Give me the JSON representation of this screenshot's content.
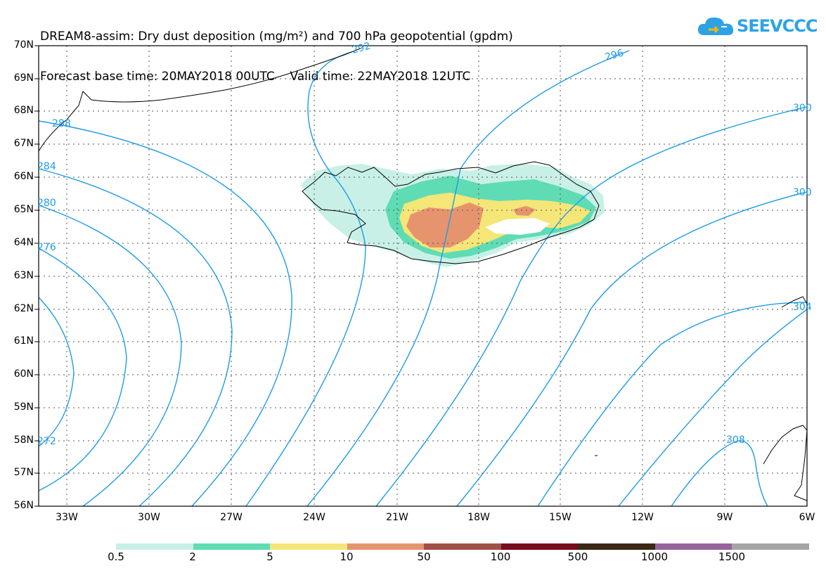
{
  "title": {
    "line1": "DREAM8-assim: Dry dust deposition (mg/m²) and 700 hPa geopotential (gpdm)",
    "line2": "Forecast base time: 20MAY2018 00UTC    Valid time: 22MAY2018 12UTC"
  },
  "logo": {
    "text": "SEEVCCC",
    "icon": "cloud-icon",
    "color": "#2da3e6"
  },
  "lat_labels": [
    "70N",
    "69N",
    "68N",
    "67N",
    "66N",
    "65N",
    "64N",
    "63N",
    "62N",
    "61N",
    "60N",
    "59N",
    "58N",
    "57N",
    "56N"
  ],
  "lon_labels": [
    "33W",
    "30W",
    "27W",
    "24W",
    "21W",
    "18W",
    "15W",
    "12W",
    "9W",
    "6W"
  ],
  "contour_labels": [
    "292",
    "296",
    "288",
    "284",
    "280",
    "276",
    "272",
    "300",
    "304",
    "308"
  ],
  "legend": {
    "colors": [
      "#c8f0e6",
      "#5fdcb4",
      "#f5e678",
      "#e6946e",
      "#a05046",
      "#780a1e",
      "#3c2814",
      "#96649b",
      "#a5a5a5"
    ],
    "labels": [
      "0.5",
      "2",
      "5",
      "10",
      "50",
      "100",
      "500",
      "1000",
      "1500"
    ]
  },
  "map_colors": {
    "contour": "#1e9be6",
    "coast": "#000000",
    "grid": "#555555"
  }
}
